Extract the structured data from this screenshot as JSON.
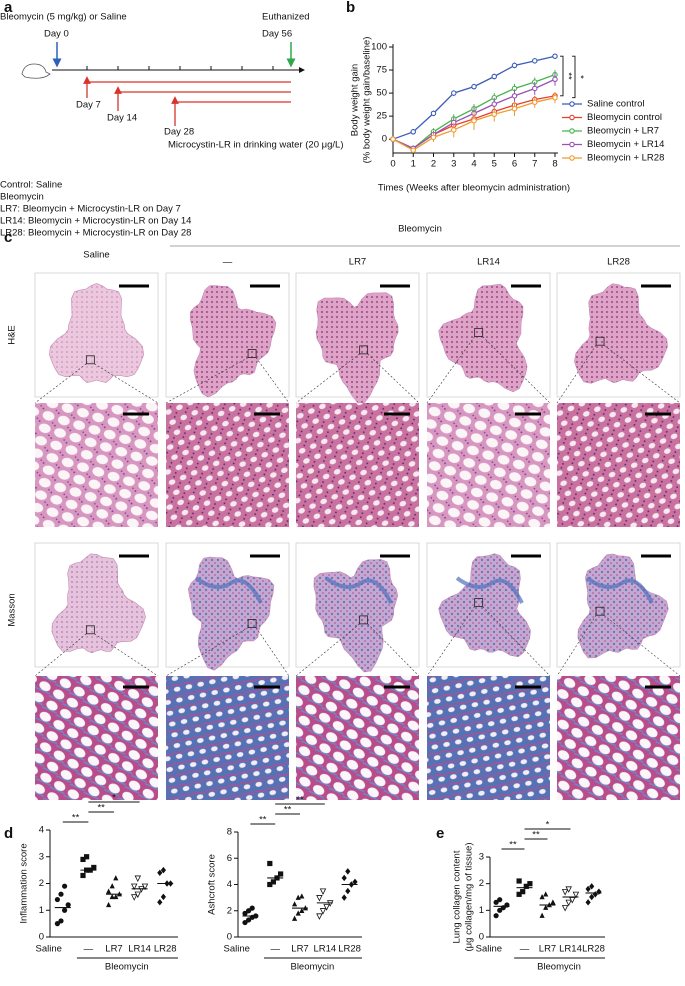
{
  "panel_labels": [
    "a",
    "b",
    "c",
    "d",
    "e"
  ],
  "timeline": {
    "treatment": "Bleomycin (5 mg/kg) or Saline",
    "start": "Day 0",
    "end_label": "Euthanized",
    "end": "Day 56",
    "lr_starts": [
      "Day 7",
      "Day 14",
      "Day 28"
    ],
    "note": "Microcystin-LR in drinking water (20 μg/L)",
    "groups": [
      "Control: Saline",
      "Bleomycin",
      "LR7: Bleomycin + Microcystin-LR on Day 7",
      "LR14: Bleomycin + Microcystin-LR on Day 14",
      "LR28: Bleomycin + Microcystin-LR on Day 28"
    ]
  },
  "histology": {
    "columns": [
      "Saline",
      "—",
      "LR7",
      "LR14",
      "LR28"
    ],
    "group": "Bleomycin",
    "stains": [
      "H&E",
      "Masson"
    ]
  },
  "chart_data": [
    {
      "type": "line",
      "xlabel": "Times (Weeks after bleomycin administration)",
      "ylabel": "Body weight gain",
      "ylabel_sub": "(% body weight gain/baseline)",
      "x": [
        0,
        1,
        2,
        3,
        4,
        5,
        6,
        7,
        8
      ],
      "xlim": [
        0,
        8
      ],
      "xticks": [
        0,
        1,
        2,
        3,
        4,
        5,
        6,
        7,
        8
      ],
      "ylim": [
        -15,
        100
      ],
      "yticks": [
        0,
        25,
        50,
        75,
        100
      ],
      "series": [
        {
          "name": "Saline control",
          "color": "#3b5cb8",
          "values": [
            0,
            8,
            28,
            50,
            57,
            68,
            80,
            85,
            90
          ],
          "errors": [
            0,
            3,
            3,
            3,
            3,
            3,
            3,
            3,
            3
          ]
        },
        {
          "name": "Bleomycin control",
          "color": "#e5412b",
          "values": [
            0,
            -10,
            5,
            15,
            22,
            30,
            37,
            43,
            47
          ],
          "errors": [
            0,
            3,
            4,
            4,
            4,
            4,
            4,
            4,
            4
          ]
        },
        {
          "name": "Bleomycin + LR7",
          "color": "#46b54b",
          "values": [
            0,
            -10,
            8,
            22,
            33,
            45,
            55,
            62,
            70
          ],
          "errors": [
            0,
            3,
            4,
            5,
            5,
            5,
            5,
            5,
            5
          ]
        },
        {
          "name": "Bleomycin + LR14",
          "color": "#9a50b5",
          "values": [
            0,
            -10,
            5,
            18,
            28,
            38,
            47,
            55,
            65
          ],
          "errors": [
            0,
            3,
            4,
            6,
            7,
            7,
            7,
            7,
            7
          ]
        },
        {
          "name": "Bleomycin + LR28",
          "color": "#f29a2e",
          "values": [
            0,
            -12,
            2,
            10,
            20,
            27,
            33,
            40,
            45
          ],
          "errors": [
            0,
            3,
            5,
            8,
            10,
            8,
            8,
            6,
            6
          ]
        }
      ],
      "significance": [
        {
          "label": "**",
          "pair": [
            0,
            1
          ]
        },
        {
          "label": "*",
          "pair": [
            0,
            4
          ]
        }
      ]
    },
    {
      "type": "dot",
      "ylabel": "Inflammation score",
      "categories": [
        "Saline",
        "—",
        "LR7",
        "LR14",
        "LR28"
      ],
      "group": "Bleomycin",
      "markers": [
        "circle",
        "square",
        "triangle",
        "triangle-open-down",
        "diamond"
      ],
      "color": "#111111",
      "points": [
        [
          0.5,
          0.6,
          1.0,
          1.2,
          1.4,
          1.6,
          1.9
        ],
        [
          2.3,
          2.5,
          2.5,
          2.6,
          2.9,
          3.0
        ],
        [
          1.2,
          1.5,
          1.5,
          1.6,
          1.7,
          1.9,
          2.2
        ],
        [
          1.5,
          1.6,
          1.8,
          1.9,
          1.9,
          2.2
        ],
        [
          1.3,
          1.5,
          2.0,
          2.0,
          2.4,
          2.5
        ]
      ],
      "means": [
        1.1,
        2.5,
        1.6,
        1.8,
        2.0
      ],
      "ylim": [
        0,
        4
      ],
      "yticks": [
        0,
        1,
        2,
        3,
        4
      ],
      "significance": [
        {
          "label": "**",
          "pair": [
            0,
            1
          ]
        },
        {
          "label": "**",
          "pair": [
            1,
            2
          ]
        },
        {
          "label": "*",
          "pair": [
            1,
            3
          ]
        }
      ]
    },
    {
      "type": "dot",
      "ylabel": "Ashcroft score",
      "categories": [
        "Saline",
        "—",
        "LR7",
        "LR14",
        "LR28"
      ],
      "group": "Bleomycin",
      "markers": [
        "circle",
        "square",
        "triangle",
        "triangle-open-down",
        "diamond"
      ],
      "color": "#111111",
      "points": [
        [
          1.1,
          1.3,
          1.5,
          1.6,
          1.8,
          2.0,
          2.2
        ],
        [
          4.0,
          4.2,
          4.5,
          4.8,
          5.6
        ],
        [
          1.4,
          1.8,
          2.0,
          2.2,
          2.5,
          3.0,
          3.1
        ],
        [
          1.6,
          2.0,
          2.3,
          2.6,
          3.0,
          3.5
        ],
        [
          3.0,
          3.5,
          4.0,
          4.2,
          4.5,
          5.0
        ]
      ],
      "means": [
        1.6,
        4.5,
        2.2,
        2.6,
        4.0
      ],
      "ylim": [
        0,
        8
      ],
      "yticks": [
        0,
        2,
        4,
        6,
        8
      ],
      "significance": [
        {
          "label": "**",
          "pair": [
            0,
            1
          ]
        },
        {
          "label": "**",
          "pair": [
            1,
            2
          ]
        },
        {
          "label": "**",
          "pair": [
            1,
            3
          ]
        }
      ]
    },
    {
      "type": "dot",
      "ylabel": "Lung collagen content",
      "ylabel_sub": "(μg collagen/mg of tissue)",
      "categories": [
        "Saline",
        "—",
        "LR7",
        "LR14",
        "LR28"
      ],
      "group": "Bleomycin",
      "markers": [
        "circle",
        "square",
        "triangle",
        "triangle-open-down",
        "diamond"
      ],
      "color": "#111111",
      "points": [
        [
          0.8,
          1.0,
          1.1,
          1.2,
          1.3,
          1.4
        ],
        [
          1.6,
          1.7,
          1.9,
          2.0,
          2.1
        ],
        [
          0.8,
          1.1,
          1.2,
          1.3,
          1.5,
          1.6
        ],
        [
          1.1,
          1.3,
          1.4,
          1.6,
          1.7,
          1.8
        ],
        [
          1.3,
          1.5,
          1.6,
          1.7,
          1.8,
          1.9
        ]
      ],
      "means": [
        1.15,
        1.85,
        1.2,
        1.5,
        1.65
      ],
      "ylim": [
        0,
        3
      ],
      "yticks": [
        0,
        1,
        2,
        3
      ],
      "significance": [
        {
          "label": "**",
          "pair": [
            0,
            1
          ]
        },
        {
          "label": "**",
          "pair": [
            1,
            2
          ]
        },
        {
          "label": "*",
          "pair": [
            1,
            3
          ]
        }
      ]
    }
  ]
}
